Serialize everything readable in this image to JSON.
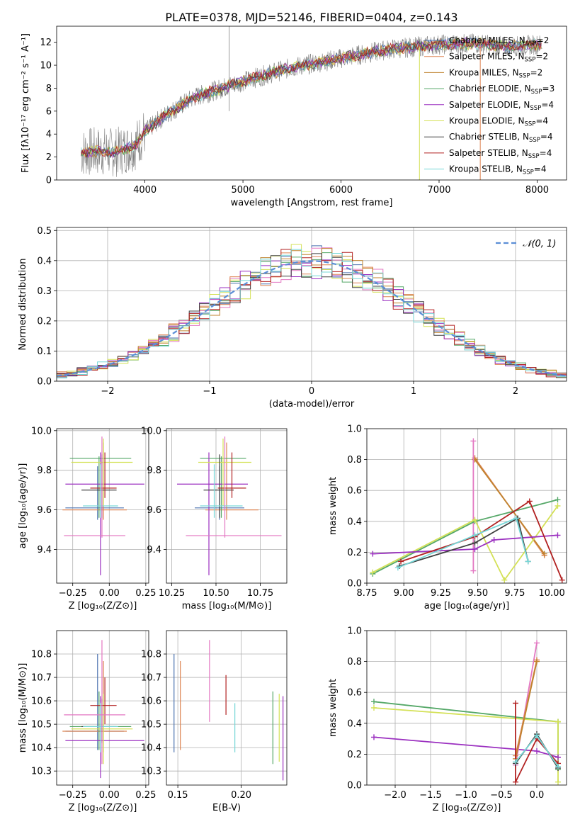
{
  "figure_title": "PLATE=0378, MJD=52146, FIBERID=0404, z=0.143",
  "colors": {
    "series": [
      "#4c72b0",
      "#dd8452",
      "#c0832f",
      "#55a868",
      "#9b30c0",
      "#d4e157",
      "#404040",
      "#b22222",
      "#76d7d7"
    ],
    "extra_pink": "#e377c2",
    "data_grey": "#808080",
    "normal_curve": "#5b8ed6",
    "grid": "#b0b0b0"
  },
  "chart_data": [
    {
      "id": "spectrum",
      "type": "line",
      "xlabel": "wavelength [Angstrom, rest frame]",
      "ylabel": "Flux [fλ10⁻¹⁷ erg cm⁻² s⁻¹ A⁻¹]",
      "xlim": [
        3100,
        8300
      ],
      "ylim": [
        0,
        13.4
      ],
      "xticks": [
        4000,
        5000,
        6000,
        7000,
        8000
      ],
      "yticks": [
        0,
        2,
        4,
        6,
        8,
        10,
        12
      ],
      "grid": false,
      "legend_placement": "right",
      "legend": [
        {
          "label": "Chabrier MILES, N",
          "sub": "SSP",
          "suffix": "=2"
        },
        {
          "label": "Salpeter MILES, N",
          "sub": "SSP",
          "suffix": "=2"
        },
        {
          "label": "Kroupa MILES, N",
          "sub": "SSP",
          "suffix": "=2"
        },
        {
          "label": "Chabrier ELODIE, N",
          "sub": "SSP",
          "suffix": "=3"
        },
        {
          "label": "Salpeter ELODIE, N",
          "sub": "SSP",
          "suffix": "=4"
        },
        {
          "label": "Kroupa ELODIE, N",
          "sub": "SSP",
          "suffix": "=4"
        },
        {
          "label": "Chabrier STELIB, N",
          "sub": "SSP",
          "suffix": "=4"
        },
        {
          "label": "Salpeter STELIB, N",
          "sub": "SSP",
          "suffix": "=4"
        },
        {
          "label": "Kroupa STELIB, N",
          "sub": "SSP",
          "suffix": "=4"
        }
      ],
      "continuum_points": [
        [
          3350,
          2.4
        ],
        [
          3550,
          2.5
        ],
        [
          3700,
          2.4
        ],
        [
          3900,
          3.0
        ],
        [
          4000,
          4.2
        ],
        [
          4200,
          5.6
        ],
        [
          4500,
          7.2
        ],
        [
          5000,
          8.6
        ],
        [
          5500,
          9.8
        ],
        [
          6000,
          10.6
        ],
        [
          6500,
          11.4
        ],
        [
          7000,
          11.8
        ],
        [
          7400,
          11.9
        ],
        [
          7700,
          11.6
        ],
        [
          8000,
          11.8
        ]
      ]
    },
    {
      "id": "residuals",
      "type": "histogram",
      "xlabel": "(data-model)/error",
      "ylabel": "Normed distribution",
      "xlim": [
        -2.5,
        2.5
      ],
      "ylim": [
        0,
        0.51
      ],
      "xticks": [
        -2,
        -1,
        0,
        1,
        2
      ],
      "yticks": [
        0.0,
        0.1,
        0.2,
        0.3,
        0.4,
        0.5
      ],
      "grid": true,
      "legend_placement": "top-right",
      "legend": [
        {
          "label": "𝒩(0, 1)"
        }
      ],
      "bin_width": 0.1
    },
    {
      "id": "age-vs-Z",
      "type": "errorbar",
      "xlabel": "Z [log₁₀(Z/Z⊙)]",
      "ylabel": "age  [log₁₀(age/yr)]",
      "xlim": [
        -0.36,
        0.27
      ],
      "ylim": [
        9.23,
        10.01
      ],
      "xticks": [
        -0.25,
        0.0,
        0.25
      ],
      "xtick_labels": [
        "−0.25",
        "0.00",
        "0.25"
      ],
      "yticks": [
        9.4,
        9.6,
        9.8,
        10.0
      ],
      "grid": true,
      "points": [
        {
          "c": 0,
          "x": -0.08,
          "xe": [
            0.22,
            0.18
          ],
          "y": 9.61,
          "ye": [
            0.06,
            0.21
          ]
        },
        {
          "c": 1,
          "x": -0.04,
          "xe": [
            0.28,
            0.16
          ],
          "y": 9.6,
          "ye": [
            0.05,
            0.34
          ]
        },
        {
          "c": 3,
          "x": -0.07,
          "xe": [
            0.2,
            0.22
          ],
          "y": 9.86,
          "ye": [
            0.3,
            0.01
          ]
        },
        {
          "c": 4,
          "x": -0.06,
          "xe": [
            0.24,
            0.3
          ],
          "y": 9.73,
          "ye": [
            0.46,
            0.16
          ]
        },
        {
          "c": 5,
          "x": -0.04,
          "xe": [
            0.22,
            0.2
          ],
          "y": 9.84,
          "ye": [
            0.22,
            0.12
          ]
        },
        {
          "c": 6,
          "x": -0.05,
          "xe": [
            0.14,
            0.1
          ],
          "y": 9.7,
          "ye": [
            0.14,
            0.18
          ]
        },
        {
          "c": 7,
          "x": -0.03,
          "xe": [
            0.1,
            0.08
          ],
          "y": 9.71,
          "ye": [
            0.05,
            0.18
          ]
        },
        {
          "c": 8,
          "x": -0.06,
          "xe": [
            0.12,
            0.12
          ],
          "y": 9.62,
          "ye": [
            0.06,
            0.21
          ]
        },
        {
          "c": 9,
          "x": -0.05,
          "xe": [
            0.26,
            0.16
          ],
          "y": 9.47,
          "ye": [
            0.01,
            0.5
          ]
        }
      ]
    },
    {
      "id": "age-vs-mass",
      "type": "errorbar",
      "xlabel": "mass [log₁₀(M/M⊙)]",
      "ylabel": "",
      "xlim": [
        10.22,
        10.9
      ],
      "ylim": [
        9.23,
        10.01
      ],
      "xticks": [
        10.25,
        10.5,
        10.75
      ],
      "xtick_labels": [
        "10.25",
        "10.50",
        "10.75"
      ],
      "yticks": [
        9.4,
        9.6,
        9.8,
        10.0
      ],
      "grid": true,
      "points": [
        {
          "c": 0,
          "x": 10.52,
          "xe": [
            0.14,
            0.14
          ],
          "y": 9.61,
          "ye": [
            0.06,
            0.21
          ]
        },
        {
          "c": 1,
          "x": 10.56,
          "xe": [
            0.12,
            0.18
          ],
          "y": 9.6,
          "ye": [
            0.05,
            0.34
          ]
        },
        {
          "c": 3,
          "x": 10.53,
          "xe": [
            0.12,
            0.14
          ],
          "y": 9.86,
          "ye": [
            0.3,
            0.01
          ]
        },
        {
          "c": 4,
          "x": 10.46,
          "xe": [
            0.18,
            0.22
          ],
          "y": 9.73,
          "ye": [
            0.46,
            0.16
          ]
        },
        {
          "c": 5,
          "x": 10.54,
          "xe": [
            0.14,
            0.16
          ],
          "y": 9.84,
          "ye": [
            0.22,
            0.12
          ]
        },
        {
          "c": 6,
          "x": 10.52,
          "xe": [
            0.09,
            0.08
          ],
          "y": 9.7,
          "ye": [
            0.14,
            0.18
          ]
        },
        {
          "c": 7,
          "x": 10.59,
          "xe": [
            0.08,
            0.08
          ],
          "y": 9.71,
          "ye": [
            0.05,
            0.18
          ]
        },
        {
          "c": 8,
          "x": 10.49,
          "xe": [
            0.08,
            0.16
          ],
          "y": 9.62,
          "ye": [
            0.06,
            0.21
          ]
        },
        {
          "c": 9,
          "x": 10.55,
          "xe": [
            0.22,
            0.32
          ],
          "y": 9.47,
          "ye": [
            0.01,
            0.5
          ]
        }
      ]
    },
    {
      "id": "weight-vs-age",
      "type": "line",
      "xlabel": "age  [log₁₀(age/yr)]",
      "ylabel": "mass weight",
      "xlim": [
        8.75,
        10.1
      ],
      "ylim": [
        0,
        1.0
      ],
      "xticks": [
        8.75,
        9.0,
        9.25,
        9.5,
        9.75,
        10.0
      ],
      "xtick_labels": [
        "8.75",
        "9.00",
        "9.25",
        "9.50",
        "9.75",
        "10.00"
      ],
      "yticks": [
        0.0,
        0.2,
        0.4,
        0.6,
        0.8,
        1.0
      ],
      "grid": true,
      "series": [
        {
          "c": 1,
          "x": [
            9.48,
            9.95
          ],
          "y": [
            0.81,
            0.18
          ]
        },
        {
          "c": 2,
          "x": [
            9.48,
            9.95
          ],
          "y": [
            0.8,
            0.19
          ]
        },
        {
          "c": 9,
          "x": [
            9.47,
            9.47
          ],
          "y": [
            0.08,
            0.92
          ]
        },
        {
          "c": 3,
          "x": [
            8.79,
            9.48,
            10.04
          ],
          "y": [
            0.06,
            0.4,
            0.54
          ]
        },
        {
          "c": 5,
          "x": [
            8.79,
            9.48,
            9.68,
            10.04
          ],
          "y": [
            0.07,
            0.41,
            0.02,
            0.5
          ]
        },
        {
          "c": 4,
          "x": [
            8.79,
            9.48,
            9.61,
            10.04
          ],
          "y": [
            0.19,
            0.22,
            0.28,
            0.31
          ]
        },
        {
          "c": 7,
          "x": [
            8.98,
            9.48,
            9.85,
            10.07
          ],
          "y": [
            0.14,
            0.3,
            0.53,
            0.02
          ]
        },
        {
          "c": 6,
          "x": [
            8.97,
            9.48,
            9.77,
            9.84
          ],
          "y": [
            0.11,
            0.26,
            0.42,
            0.14
          ]
        },
        {
          "c": 8,
          "x": [
            8.96,
            9.48,
            9.76,
            9.84
          ],
          "y": [
            0.1,
            0.31,
            0.42,
            0.14
          ]
        }
      ]
    },
    {
      "id": "mass-vs-Z",
      "type": "errorbar",
      "xlabel": "Z [log₁₀(Z/Z⊙)]",
      "ylabel": "mass [log₁₀(M/M⊙)]",
      "xlim": [
        -0.36,
        0.27
      ],
      "ylim": [
        10.24,
        10.9
      ],
      "xticks": [
        -0.25,
        0.0,
        0.25
      ],
      "xtick_labels": [
        "−0.25",
        "0.00",
        "0.25"
      ],
      "yticks": [
        10.3,
        10.4,
        10.5,
        10.6,
        10.7,
        10.8
      ],
      "grid": true,
      "points": [
        {
          "c": 0,
          "x": -0.08,
          "xe": [
            0.22,
            0.18
          ],
          "y": 10.47,
          "ye": [
            0.08,
            0.33
          ]
        },
        {
          "c": 1,
          "x": -0.04,
          "xe": [
            0.28,
            0.16
          ],
          "y": 10.47,
          "ye": [
            0.09,
            0.3
          ]
        },
        {
          "c": 3,
          "x": -0.07,
          "xe": [
            0.2,
            0.22
          ],
          "y": 10.49,
          "ye": [
            0.1,
            0.15
          ]
        },
        {
          "c": 4,
          "x": -0.06,
          "xe": [
            0.24,
            0.3
          ],
          "y": 10.43,
          "ye": [
            0.16,
            0.19
          ]
        },
        {
          "c": 5,
          "x": -0.04,
          "xe": [
            0.22,
            0.2
          ],
          "y": 10.48,
          "ye": [
            0.15,
            0.15
          ]
        },
        {
          "c": 6,
          "x": -0.05,
          "xe": [
            0.14,
            0.1
          ],
          "y": 10.49,
          "ye": [
            0.07,
            0.12
          ]
        },
        {
          "c": 7,
          "x": -0.03,
          "xe": [
            0.1,
            0.08
          ],
          "y": 10.58,
          "ye": [
            0.08,
            0.12
          ]
        },
        {
          "c": 8,
          "x": -0.06,
          "xe": [
            0.12,
            0.12
          ],
          "y": 10.49,
          "ye": [
            0.11,
            0.1
          ]
        },
        {
          "c": 9,
          "x": -0.05,
          "xe": [
            0.26,
            0.16
          ],
          "y": 10.54,
          "ye": [
            0.21,
            0.32
          ]
        }
      ]
    },
    {
      "id": "mass-vs-ebv",
      "type": "errorbar",
      "xlabel": "E(B-V)",
      "ylabel": "",
      "xlim": [
        0.141,
        0.236
      ],
      "ylim": [
        10.24,
        10.9
      ],
      "xticks": [
        0.15,
        0.2
      ],
      "xtick_labels": [
        "0.15",
        "0.20"
      ],
      "yticks": [
        10.3,
        10.4,
        10.5,
        10.6,
        10.7,
        10.8
      ],
      "grid": true,
      "points": [
        {
          "c": 0,
          "x": 0.147,
          "y": 10.59,
          "ye": [
            0.21,
            0.21
          ]
        },
        {
          "c": 1,
          "x": 0.152,
          "y": 10.57,
          "ye": [
            0.18,
            0.2
          ]
        },
        {
          "c": 9,
          "x": 0.175,
          "y": 10.68,
          "ye": [
            0.17,
            0.18
          ]
        },
        {
          "c": 7,
          "x": 0.188,
          "y": 10.61,
          "ye": [
            0.07,
            0.1
          ]
        },
        {
          "c": 8,
          "x": 0.195,
          "y": 10.48,
          "ye": [
            0.1,
            0.11
          ]
        },
        {
          "c": 3,
          "x": 0.225,
          "y": 10.48,
          "ye": [
            0.15,
            0.16
          ]
        },
        {
          "c": 5,
          "x": 0.23,
          "y": 10.48,
          "ye": [
            0.14,
            0.15
          ]
        },
        {
          "c": 4,
          "x": 0.233,
          "y": 10.44,
          "ye": [
            0.18,
            0.18
          ]
        }
      ]
    },
    {
      "id": "weight-vs-Z",
      "type": "line",
      "xlabel": "Z [log₁₀(Z/Z⊙)]",
      "ylabel": "mass weight",
      "xlim": [
        -2.4,
        0.42
      ],
      "ylim": [
        0,
        1.0
      ],
      "xticks": [
        -2.0,
        -1.5,
        -1.0,
        -0.5,
        0.0
      ],
      "xtick_labels": [
        "−2.0",
        "−1.5",
        "−1.0",
        "−0.5",
        "0.0"
      ],
      "yticks": [
        0.0,
        0.2,
        0.4,
        0.6,
        0.8,
        1.0
      ],
      "grid": true,
      "series": [
        {
          "c": 3,
          "x": [
            -2.3,
            0.3,
            0.3
          ],
          "y": [
            0.54,
            0.41,
            0.1
          ]
        },
        {
          "c": 5,
          "x": [
            -2.3,
            0.3,
            0.3
          ],
          "y": [
            0.5,
            0.41,
            0.02
          ]
        },
        {
          "c": 4,
          "x": [
            -2.3,
            0.0,
            0.3
          ],
          "y": [
            0.31,
            0.22,
            0.18
          ]
        },
        {
          "c": 9,
          "x": [
            -0.3,
            0.0
          ],
          "y": [
            0.13,
            0.92
          ]
        },
        {
          "c": 1,
          "x": [
            -0.3,
            0.0
          ],
          "y": [
            0.19,
            0.81
          ]
        },
        {
          "c": 2,
          "x": [
            -0.3,
            0.0
          ],
          "y": [
            0.17,
            0.8
          ]
        },
        {
          "c": 7,
          "x": [
            -0.3,
            -0.3,
            0.0,
            0.3
          ],
          "y": [
            0.53,
            0.02,
            0.3,
            0.14
          ]
        },
        {
          "c": 6,
          "x": [
            -0.3,
            0.0,
            0.3
          ],
          "y": [
            0.14,
            0.33,
            0.11
          ]
        },
        {
          "c": 8,
          "x": [
            -0.3,
            0.0,
            0.3
          ],
          "y": [
            0.15,
            0.32,
            0.12
          ]
        }
      ]
    }
  ]
}
